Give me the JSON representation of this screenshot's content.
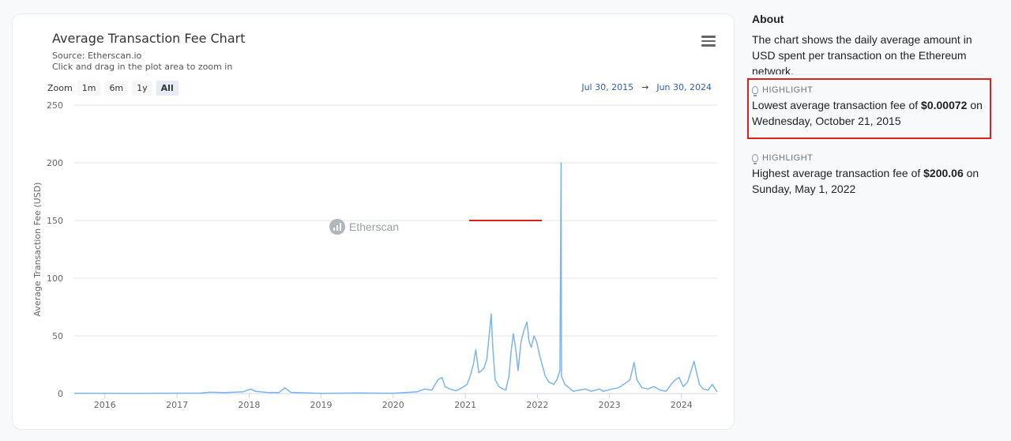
{
  "chart_card": {
    "title": "Average Transaction Fee Chart",
    "subtitle_source": "Source: Etherscan.io",
    "subtitle_hint": "Click and drag in the plot area to zoom in",
    "watermark": "Etherscan",
    "menu_icon": "hamburger-menu-icon",
    "zoom": {
      "label": "Zoom",
      "buttons": [
        "1m",
        "6m",
        "1y",
        "All"
      ],
      "active": "All"
    },
    "range": {
      "from": "Jul 30, 2015",
      "arrow": "→",
      "to": "Jun 30, 2024"
    }
  },
  "chart_data": {
    "type": "line",
    "title": "Average Transaction Fee Chart",
    "ylabel": "Average Transaction Fee (USD)",
    "xlabel": "",
    "ylim": [
      0,
      250
    ],
    "yticks": [
      0,
      50,
      100,
      150,
      200,
      250
    ],
    "xlim": [
      "2015-07-30",
      "2024-06-30"
    ],
    "xticks": [
      "2016",
      "2017",
      "2018",
      "2019",
      "2020",
      "2021",
      "2022",
      "2023",
      "2024"
    ],
    "grid": true,
    "color": "#7cb5ec",
    "series": [
      {
        "points": [
          [
            "2015-07-30",
            0.3
          ],
          [
            "2016-06-01",
            0.2
          ],
          [
            "2017-05-01",
            0.4
          ],
          [
            "2017-06-15",
            1.2
          ],
          [
            "2017-09-01",
            0.8
          ],
          [
            "2017-12-01",
            1.5
          ],
          [
            "2018-01-10",
            4.0
          ],
          [
            "2018-02-01",
            2.0
          ],
          [
            "2018-04-01",
            1.0
          ],
          [
            "2018-06-01",
            0.8
          ],
          [
            "2018-07-01",
            5.0
          ],
          [
            "2018-08-01",
            1.0
          ],
          [
            "2019-01-01",
            0.2
          ],
          [
            "2019-07-01",
            0.5
          ],
          [
            "2020-01-01",
            0.3
          ],
          [
            "2020-05-01",
            1.5
          ],
          [
            "2020-06-10",
            4.0
          ],
          [
            "2020-07-15",
            3.0
          ],
          [
            "2020-08-15",
            12.0
          ],
          [
            "2020-09-05",
            14.0
          ],
          [
            "2020-09-20",
            6.0
          ],
          [
            "2020-10-15",
            4.0
          ],
          [
            "2020-11-15",
            2.5
          ],
          [
            "2020-12-15",
            5.0
          ],
          [
            "2021-01-10",
            8.0
          ],
          [
            "2021-01-25",
            15.0
          ],
          [
            "2021-02-10",
            25.0
          ],
          [
            "2021-02-23",
            38.0
          ],
          [
            "2021-03-10",
            18.0
          ],
          [
            "2021-03-25",
            20.0
          ],
          [
            "2021-04-05",
            22.0
          ],
          [
            "2021-04-20",
            30.0
          ],
          [
            "2021-05-12",
            69.0
          ],
          [
            "2021-05-20",
            40.0
          ],
          [
            "2021-06-01",
            12.0
          ],
          [
            "2021-06-20",
            6.0
          ],
          [
            "2021-07-10",
            4.0
          ],
          [
            "2021-07-25",
            3.0
          ],
          [
            "2021-08-10",
            15.0
          ],
          [
            "2021-08-20",
            35.0
          ],
          [
            "2021-09-01",
            52.0
          ],
          [
            "2021-09-12",
            40.0
          ],
          [
            "2021-09-25",
            20.0
          ],
          [
            "2021-10-10",
            45.0
          ],
          [
            "2021-10-25",
            55.0
          ],
          [
            "2021-11-09",
            62.0
          ],
          [
            "2021-11-20",
            45.0
          ],
          [
            "2021-12-01",
            40.0
          ],
          [
            "2021-12-15",
            50.0
          ],
          [
            "2021-12-28",
            45.0
          ],
          [
            "2022-01-10",
            35.0
          ],
          [
            "2022-01-25",
            25.0
          ],
          [
            "2022-02-10",
            15.0
          ],
          [
            "2022-03-01",
            10.0
          ],
          [
            "2022-03-25",
            8.0
          ],
          [
            "2022-04-10",
            12.0
          ],
          [
            "2022-04-25",
            20.0
          ],
          [
            "2022-05-01",
            200.06
          ],
          [
            "2022-05-03",
            15.0
          ],
          [
            "2022-05-20",
            8.0
          ],
          [
            "2022-06-10",
            5.0
          ],
          [
            "2022-07-01",
            2.0
          ],
          [
            "2022-08-01",
            3.0
          ],
          [
            "2022-09-01",
            4.0
          ],
          [
            "2022-10-01",
            2.0
          ],
          [
            "2022-11-10",
            4.0
          ],
          [
            "2022-12-01",
            2.0
          ],
          [
            "2023-01-15",
            4.0
          ],
          [
            "2023-02-15",
            5.0
          ],
          [
            "2023-03-15",
            8.0
          ],
          [
            "2023-04-15",
            12.0
          ],
          [
            "2023-05-06",
            27.0
          ],
          [
            "2023-05-20",
            12.0
          ],
          [
            "2023-06-15",
            5.0
          ],
          [
            "2023-07-15",
            4.0
          ],
          [
            "2023-08-15",
            6.0
          ],
          [
            "2023-09-15",
            3.0
          ],
          [
            "2023-10-15",
            2.0
          ],
          [
            "2023-11-10",
            8.0
          ],
          [
            "2023-12-01",
            12.0
          ],
          [
            "2023-12-20",
            14.0
          ],
          [
            "2024-01-10",
            6.0
          ],
          [
            "2024-02-01",
            10.0
          ],
          [
            "2024-03-05",
            28.0
          ],
          [
            "2024-03-15",
            20.0
          ],
          [
            "2024-04-01",
            8.0
          ],
          [
            "2024-04-20",
            4.0
          ],
          [
            "2024-05-15",
            3.0
          ],
          [
            "2024-06-05",
            8.0
          ],
          [
            "2024-06-20",
            4.0
          ],
          [
            "2024-06-30",
            1.5
          ]
        ]
      }
    ]
  },
  "about": {
    "title": "About",
    "text": "The chart shows the daily average amount in USD spent per transaction on the Ethereum network."
  },
  "highlights": [
    {
      "label": "HIGHLIGHT",
      "icon": "lightbulb-icon",
      "prefix": "Lowest average transaction fee of ",
      "value": "$0.00072",
      "suffix": " on",
      "date": "Wednesday, October 21, 2015"
    },
    {
      "label": "HIGHLIGHT",
      "icon": "lightbulb-icon",
      "prefix": "Highest average transaction fee of ",
      "value": "$200.06",
      "suffix": " on",
      "date": "Sunday, May 1, 2022"
    }
  ],
  "colors": {
    "line": "#7cb5ec",
    "annotation_red": "#e02020",
    "range_blue": "#335cad"
  }
}
